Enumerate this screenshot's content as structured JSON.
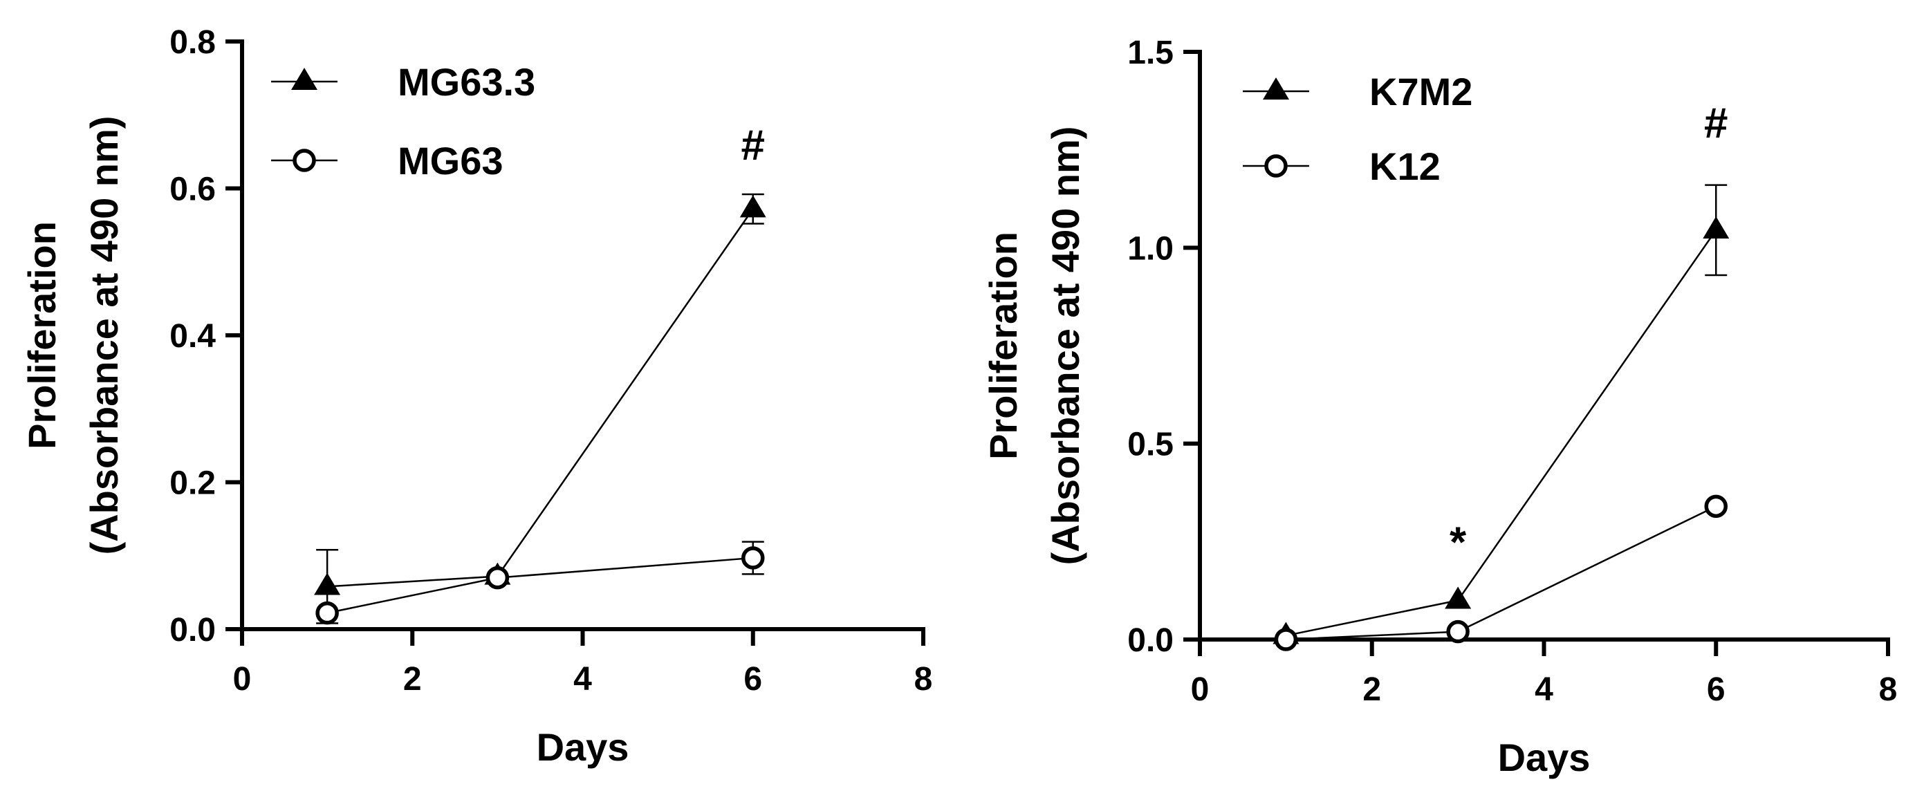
{
  "chart_data": [
    {
      "type": "line",
      "xlabel": "Days",
      "ylabel_line1": "Proliferation",
      "ylabel_line2": "(Absorbance at 490 nm)",
      "xlim": [
        0,
        8
      ],
      "ylim": [
        0,
        0.8
      ],
      "xticks": [
        0,
        2,
        4,
        6,
        8
      ],
      "yticks": [
        0.0,
        0.2,
        0.4,
        0.6,
        0.8
      ],
      "xtick_labels": [
        "0",
        "2",
        "4",
        "6",
        "8"
      ],
      "ytick_labels": [
        "0.0",
        "0.2",
        "0.4",
        "0.6",
        "0.8"
      ],
      "legend_position": "top-left",
      "series": [
        {
          "name": "MG63.3",
          "marker": "triangle-filled",
          "x": [
            1,
            3,
            6
          ],
          "y": [
            0.058,
            0.072,
            0.572
          ],
          "err": [
            0.05,
            0.0,
            0.02
          ]
        },
        {
          "name": "MG63",
          "marker": "circle-open",
          "x": [
            1,
            3,
            6
          ],
          "y": [
            0.022,
            0.07,
            0.097
          ],
          "err": [
            0.0,
            0.0,
            0.022
          ]
        }
      ],
      "annotations": [
        {
          "text": "#",
          "x": 6,
          "y": 0.66
        }
      ]
    },
    {
      "type": "line",
      "xlabel": "Days",
      "ylabel_line1": "Proliferation",
      "ylabel_line2": "(Absorbance at 490 nm)",
      "xlim": [
        0,
        8
      ],
      "ylim": [
        0,
        1.5
      ],
      "xticks": [
        0,
        2,
        4,
        6,
        8
      ],
      "yticks": [
        0.0,
        0.5,
        1.0,
        1.5
      ],
      "xtick_labels": [
        "0",
        "2",
        "4",
        "6",
        "8"
      ],
      "ytick_labels": [
        "0.0",
        "0.5",
        "1.0",
        "1.5"
      ],
      "legend_position": "top-left",
      "series": [
        {
          "name": "K7M2",
          "marker": "triangle-filled",
          "x": [
            1,
            3,
            6
          ],
          "y": [
            0.01,
            0.1,
            1.045
          ],
          "err": [
            0.0,
            0.0,
            0.115
          ]
        },
        {
          "name": "K12",
          "marker": "circle-open",
          "x": [
            1,
            3,
            6
          ],
          "y": [
            0.0,
            0.02,
            0.34
          ],
          "err": [
            0.0,
            0.0,
            0.0
          ]
        }
      ],
      "annotations": [
        {
          "text": "*",
          "x": 3,
          "y": 0.25
        },
        {
          "text": "#",
          "x": 6,
          "y": 1.32
        }
      ]
    }
  ]
}
